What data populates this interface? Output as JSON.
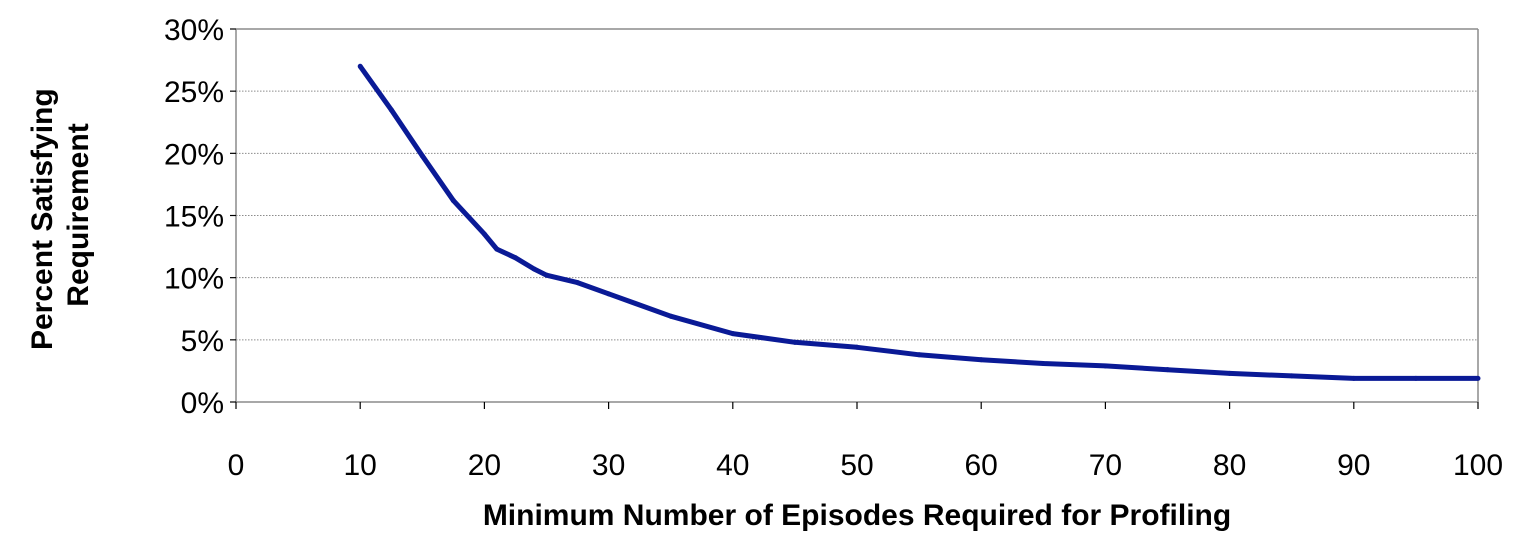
{
  "chart_data": {
    "type": "line",
    "title": "",
    "xlabel": "Minimum Number of Episodes Required for Profiling",
    "ylabel_lines": [
      "Percent Satisfying",
      "Requirement"
    ],
    "xlim": [
      0,
      100
    ],
    "ylim": [
      0,
      0.3
    ],
    "x_ticks": [
      0,
      10,
      20,
      30,
      40,
      50,
      60,
      70,
      80,
      90,
      100
    ],
    "y_ticks": [
      0,
      0.05,
      0.1,
      0.15,
      0.2,
      0.25,
      0.3
    ],
    "y_tick_labels": [
      "0%",
      "5%",
      "10%",
      "15%",
      "20%",
      "25%",
      "30%"
    ],
    "grid": "horizontal",
    "legend": "none",
    "series": [
      {
        "color": "#0a1a96",
        "x": [
          10,
          12.5,
          15,
          17.5,
          20,
          21,
          22.5,
          24,
          25,
          27.5,
          30,
          35,
          40,
          45,
          50,
          55,
          60,
          65,
          70,
          75,
          80,
          85,
          90,
          95,
          100
        ],
        "y": [
          0.27,
          0.235,
          0.198,
          0.162,
          0.135,
          0.123,
          0.116,
          0.107,
          0.102,
          0.096,
          0.087,
          0.069,
          0.055,
          0.048,
          0.044,
          0.038,
          0.034,
          0.031,
          0.029,
          0.026,
          0.023,
          0.021,
          0.019,
          0.019,
          0.019
        ]
      }
    ]
  }
}
